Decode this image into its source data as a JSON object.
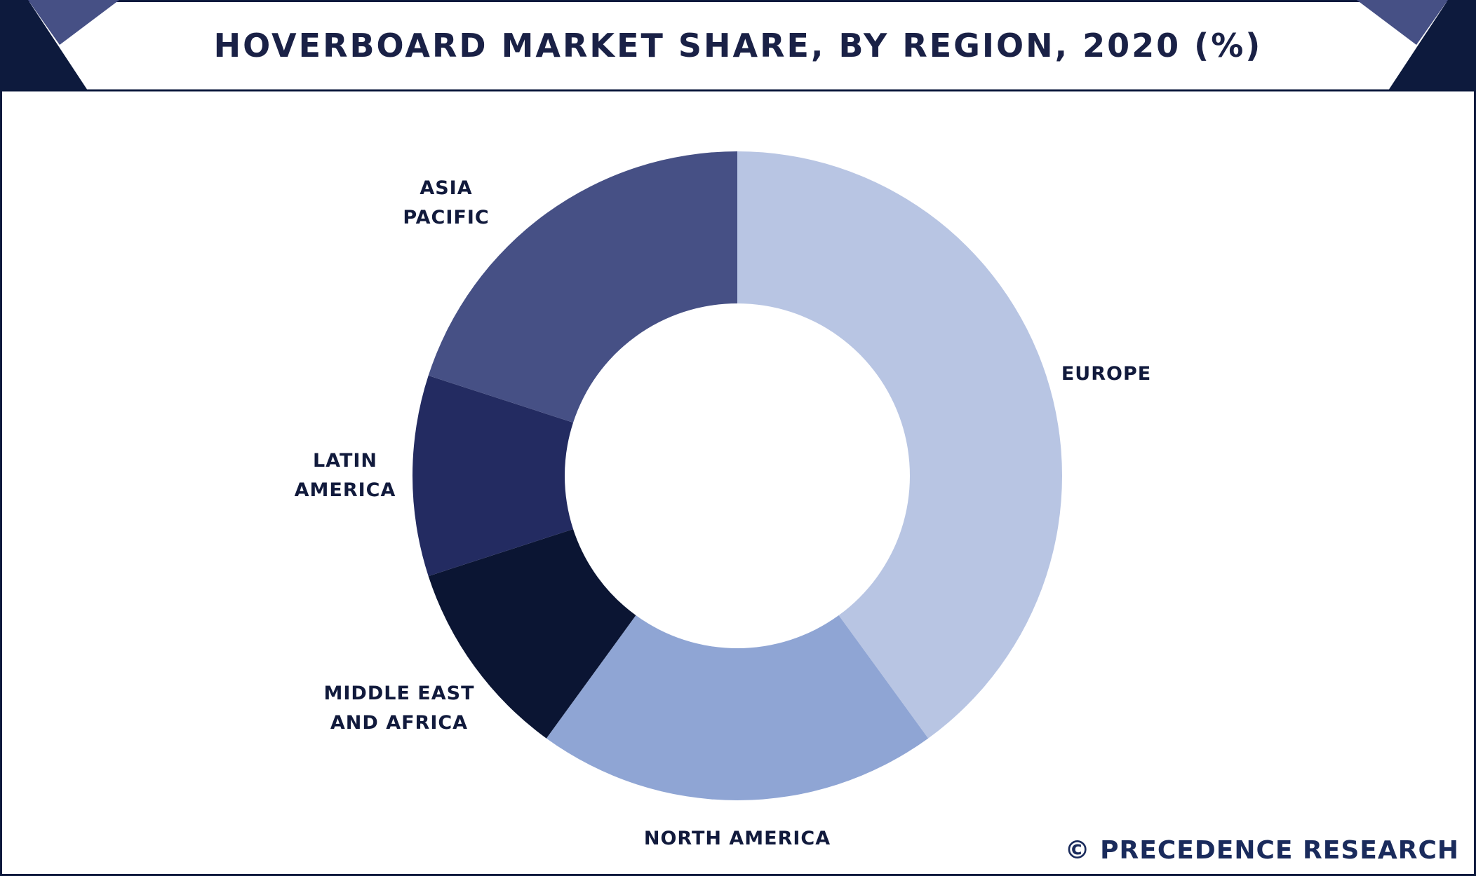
{
  "chart_data": {
    "type": "donut",
    "title": "HOVERBOARD MARKET SHARE, BY REGION, 2020 (%)",
    "categories": [
      "EUROPE",
      "NORTH AMERICA",
      "MIDDLE EAST AND AFRICA",
      "LATIN AMERICA",
      "ASIA PACIFIC"
    ],
    "values": [
      40,
      20,
      10,
      10,
      20
    ],
    "colors": [
      "#b8c5e3",
      "#8fa5d4",
      "#0b1533",
      "#232b61",
      "#465085"
    ],
    "source": "© PRECEDENCE RESEARCH"
  }
}
